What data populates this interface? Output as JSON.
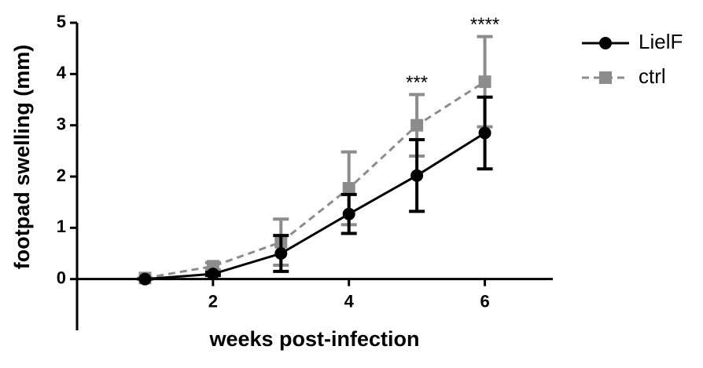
{
  "chart_data": {
    "type": "line",
    "xlabel": "weeks post-infection",
    "ylabel": "footpad swelling (mm)",
    "x": [
      1,
      2,
      3,
      4,
      5,
      6
    ],
    "series": [
      {
        "name": "LielF",
        "color": "#000000",
        "marker": "circle",
        "dash": "solid",
        "values": [
          0,
          0.1,
          0.5,
          1.27,
          2.02,
          2.85
        ],
        "errors": [
          0,
          0.03,
          0.35,
          0.38,
          0.7,
          0.7
        ]
      },
      {
        "name": "ctrl",
        "color": "#8c8c8c",
        "marker": "square",
        "dash": "dashed",
        "values": [
          0.02,
          0.25,
          0.72,
          1.77,
          3.0,
          3.85
        ],
        "errors": [
          0,
          0.07,
          0.45,
          0.71,
          0.6,
          0.88
        ]
      }
    ],
    "annotations": [
      {
        "x": 5,
        "text": "***"
      },
      {
        "x": 6,
        "text": "****"
      }
    ],
    "xlim": [
      0,
      7
    ],
    "xticks": [
      2,
      4,
      6
    ],
    "ylim": [
      -1,
      5
    ],
    "yticks": [
      0,
      1,
      2,
      3,
      4,
      5
    ],
    "legend": "right"
  }
}
